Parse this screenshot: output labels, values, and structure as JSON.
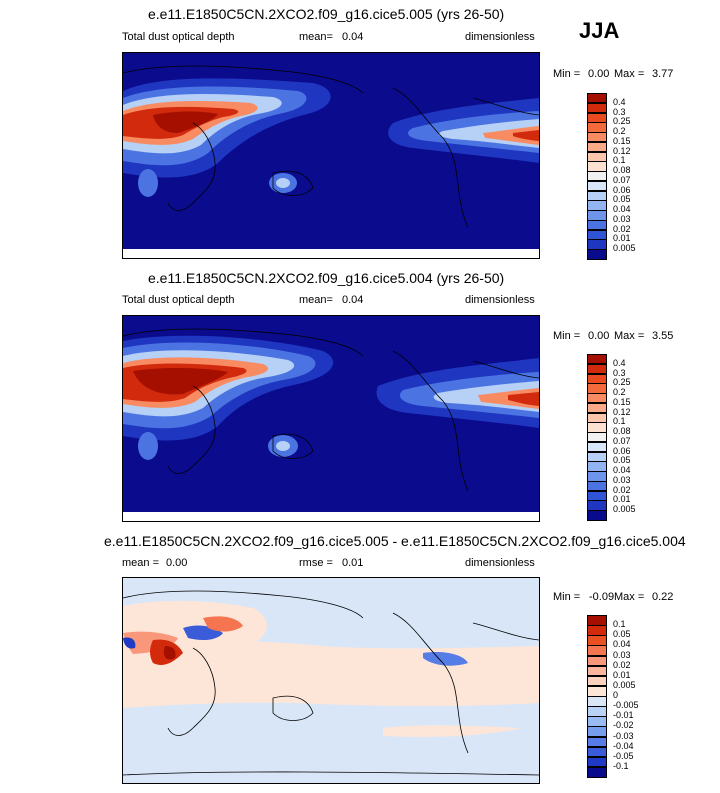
{
  "season": "JJA",
  "panels": [
    {
      "title": "e.e11.E1850C5CN.2XCO2.f09_g16.cice5.005 (yrs 26-50)",
      "variable": "Total dust optical depth",
      "stat_label": "mean=",
      "stat_value": "0.04",
      "units": "dimensionless",
      "min_label": "Min =",
      "min_value": "0.00",
      "max_label": "Max =",
      "max_value": "3.77"
    },
    {
      "title": "e.e11.E1850C5CN.2XCO2.f09_g16.cice5.004 (yrs 26-50)",
      "variable": "Total dust optical depth",
      "stat_label": "mean=",
      "stat_value": "0.04",
      "units": "dimensionless",
      "min_label": "Min =",
      "min_value": "0.00",
      "max_label": "Max =",
      "max_value": "3.55"
    },
    {
      "title": "e.e11.E1850C5CN.2XCO2.f09_g16.cice5.005 - e.e11.E1850C5CN.2XCO2.f09_g16.cice5.004",
      "stat_label": "mean =",
      "stat_value": "0.00",
      "rmse_label": "rmse =",
      "rmse_value": "0.01",
      "units": "dimensionless",
      "min_label": "Min =",
      "min_value": "-0.09",
      "max_label": "Max =",
      "max_value": "0.22"
    }
  ],
  "chart_data": [
    {
      "type": "heatmap",
      "projection": "cylindrical equidistant, Pacific-centred",
      "title": "e.e11.E1850C5CN.2XCO2.f09_g16.cice5.005 (yrs 26-50)",
      "variable": "Total dust optical depth",
      "units": "dimensionless",
      "mean": 0.04,
      "min": 0.0,
      "max": 3.77,
      "colorbar_levels": [
        "0.4",
        "0.3",
        "0.25",
        "0.2",
        "0.15",
        "0.12",
        "0.1",
        "0.08",
        "0.07",
        "0.06",
        "0.05",
        "0.04",
        "0.03",
        "0.02",
        "0.01",
        "0.005"
      ],
      "colorbar_colors": [
        "#a50f00",
        "#d12a0c",
        "#ea4a20",
        "#f46a3a",
        "#f98b62",
        "#fbaa88",
        "#fcc6ad",
        "#fde1d0",
        "#f1f1f1",
        "#d7e6f9",
        "#b7d0f6",
        "#92b4f0",
        "#6e94eb",
        "#4b74e2",
        "#2f54d5",
        "#1f36c0",
        "#0a0a8c"
      ]
    },
    {
      "type": "heatmap",
      "projection": "cylindrical equidistant, Pacific-centred",
      "title": "e.e11.E1850C5CN.2XCO2.f09_g16.cice5.004 (yrs 26-50)",
      "variable": "Total dust optical depth",
      "units": "dimensionless",
      "mean": 0.04,
      "min": 0.0,
      "max": 3.55,
      "colorbar_levels": [
        "0.4",
        "0.3",
        "0.25",
        "0.2",
        "0.15",
        "0.12",
        "0.1",
        "0.08",
        "0.07",
        "0.06",
        "0.05",
        "0.04",
        "0.03",
        "0.02",
        "0.01",
        "0.005"
      ],
      "colorbar_colors": [
        "#a50f00",
        "#d12a0c",
        "#ea4a20",
        "#f46a3a",
        "#f98b62",
        "#fbaa88",
        "#fcc6ad",
        "#fde1d0",
        "#f1f1f1",
        "#d7e6f9",
        "#b7d0f6",
        "#92b4f0",
        "#6e94eb",
        "#4b74e2",
        "#2f54d5",
        "#1f36c0",
        "#0a0a8c"
      ]
    },
    {
      "type": "heatmap",
      "projection": "cylindrical equidistant, Pacific-centred",
      "title": "e.e11.E1850C5CN.2XCO2.f09_g16.cice5.005 - e.e11.E1850C5CN.2XCO2.f09_g16.cice5.004",
      "units": "dimensionless",
      "mean": 0.0,
      "rmse": 0.01,
      "min": -0.09,
      "max": 0.22,
      "colorbar_levels": [
        "0.1",
        "0.05",
        "0.04",
        "0.03",
        "0.02",
        "0.01",
        "0.005",
        "0",
        "-0.005",
        "-0.01",
        "-0.02",
        "-0.03",
        "-0.04",
        "-0.05",
        "-0.1"
      ],
      "colorbar_colors": [
        "#a50f00",
        "#d32a0c",
        "#eb5023",
        "#f47550",
        "#f8977a",
        "#fbb59d",
        "#fcd2bf",
        "#fde6d8",
        "#d8e6f8",
        "#b9d3f6",
        "#98bcf2",
        "#779ded",
        "#567de5",
        "#3a5cd9",
        "#1f3ac4",
        "#0a0a8c"
      ]
    }
  ]
}
